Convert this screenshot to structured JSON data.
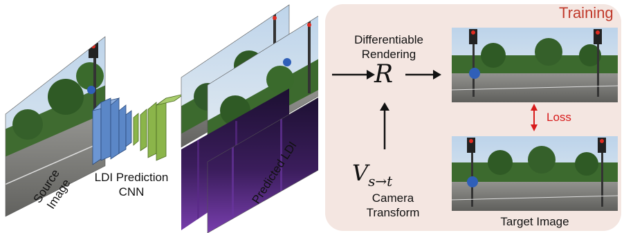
{
  "source_label": [
    "Source",
    "Image"
  ],
  "cnn_label": [
    "LDI Prediction",
    "CNN"
  ],
  "predicted_label": "Predicted LDI",
  "training_panel": {
    "title": "Training",
    "rendering_label": [
      "Differentiable",
      "Rendering"
    ],
    "render_symbol": "R",
    "loss_label": "Loss",
    "transform_symbol": "V",
    "transform_subscript": "s→t",
    "camera_label": [
      "Camera",
      "Transform"
    ],
    "target_label": "Target Image"
  },
  "colors": {
    "panel_bg": "#f4e6e1",
    "title": "#c0392b",
    "loss": "#d81b1b",
    "cnn_blue": "#5b87c7",
    "cnn_green": "#8bb54a"
  }
}
